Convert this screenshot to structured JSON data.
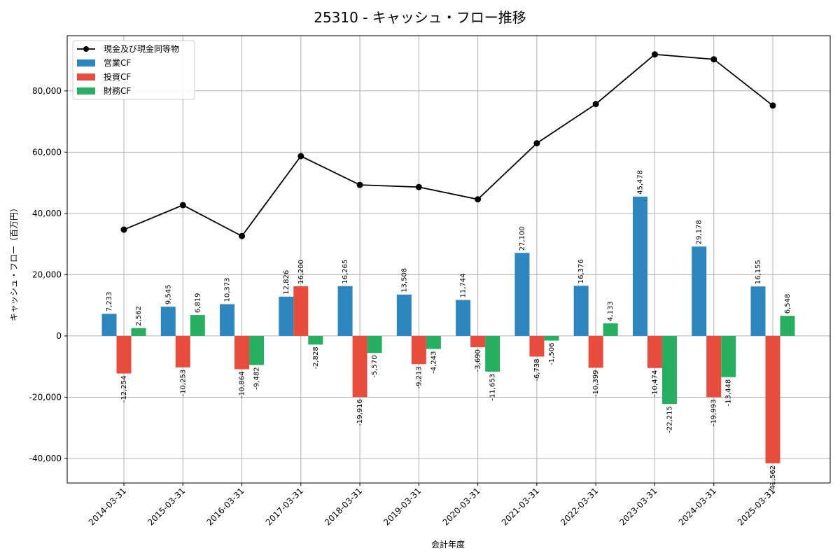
{
  "chart_data": {
    "type": "bar",
    "title": "25310 - キャッシュ・フロー推移",
    "xlabel": "会計年度",
    "ylabel": "キャッシュ・フロー（百万円）",
    "ylim": [
      -48000,
      98000
    ],
    "yticks": [
      -40000,
      -20000,
      0,
      20000,
      40000,
      60000,
      80000
    ],
    "ytick_labels": [
      "-40,000",
      "-20,000",
      "0",
      "20,000",
      "40,000",
      "60,000",
      "80,000"
    ],
    "grid": true,
    "legend_position": "top-left",
    "categories": [
      "2014-03-31",
      "2015-03-31",
      "2016-03-31",
      "2017-03-31",
      "2018-03-31",
      "2019-03-31",
      "2020-03-31",
      "2021-03-31",
      "2022-03-31",
      "2023-03-31",
      "2024-03-31",
      "2025-03-31"
    ],
    "series": [
      {
        "name": "営業CF",
        "kind": "bar",
        "color": "#2e86c1",
        "values": [
          7233,
          9545,
          10373,
          12826,
          16265,
          13508,
          11744,
          27100,
          16376,
          45478,
          29178,
          16155
        ],
        "labels": [
          "7,233",
          "9,545",
          "10,373",
          "12,826",
          "16,265",
          "13,508",
          "11,744",
          "27,100",
          "16,376",
          "45,478",
          "29,178",
          "16,155"
        ]
      },
      {
        "name": "投資CF",
        "kind": "bar",
        "color": "#e74c3c",
        "values": [
          -12254,
          -10253,
          -10864,
          16200,
          -19916,
          -9213,
          -3690,
          -6738,
          -10399,
          -10474,
          -19993,
          -41562
        ],
        "labels": [
          "-12,254",
          "-10,253",
          "-10,864",
          "16,200",
          "-19,916",
          "-9,213",
          "-3,690",
          "-6,738",
          "-10,399",
          "-10,474",
          "-19,993",
          "-41,562"
        ]
      },
      {
        "name": "財務CF",
        "kind": "bar",
        "color": "#27ae60",
        "values": [
          2562,
          6819,
          -9482,
          -2828,
          -5570,
          -4243,
          -11653,
          -1506,
          4133,
          -22215,
          -13448,
          6548
        ],
        "labels": [
          "2,562",
          "6,819",
          "-9,482",
          "-2,828",
          "-5,570",
          "-4,243",
          "-11,653",
          "-1,506",
          "4,133",
          "-22,215",
          "-13,448",
          "6,548"
        ]
      },
      {
        "name": "現金及び現金同等物",
        "kind": "line",
        "color": "#000000",
        "values": [
          34700,
          42700,
          32600,
          58700,
          49300,
          48600,
          44600,
          62900,
          75700,
          91900,
          90300,
          75200
        ]
      }
    ]
  }
}
